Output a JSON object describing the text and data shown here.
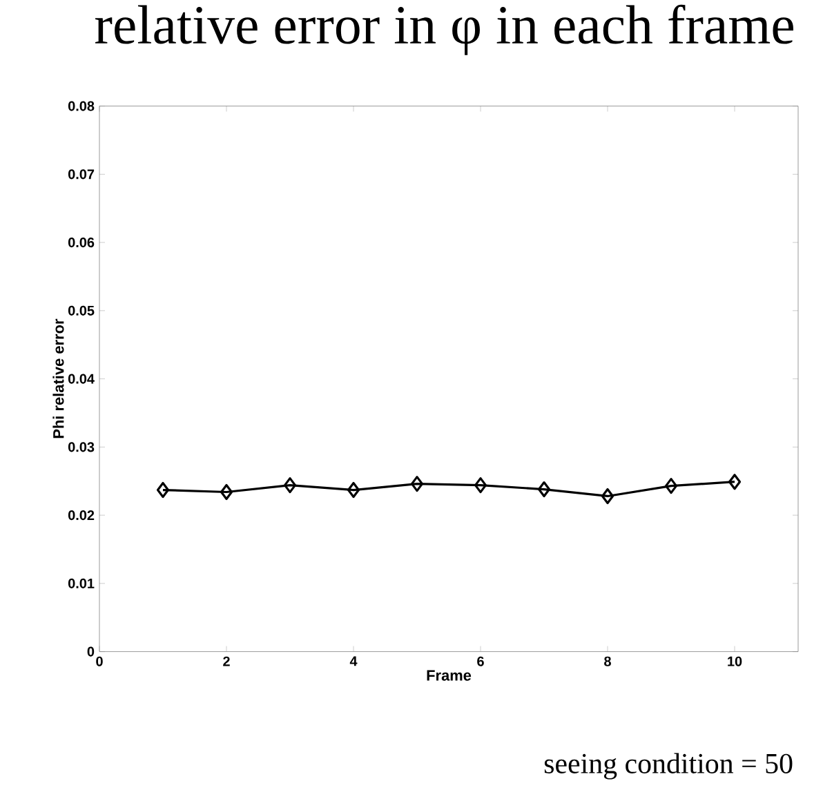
{
  "chart_data": {
    "type": "line",
    "title": "relative error in φ in each frame",
    "xlabel": "Frame",
    "ylabel": "Phi relative error",
    "annotations": [
      "seeing condition = 50"
    ],
    "x": [
      1,
      2,
      3,
      4,
      5,
      6,
      7,
      8,
      9,
      10
    ],
    "series": [
      {
        "color": "#000000",
        "values": [
          0.0237,
          0.0234,
          0.0244,
          0.0237,
          0.0246,
          0.0244,
          0.0238,
          0.0228,
          0.0243,
          0.0249
        ]
      }
    ],
    "xlim": [
      0,
      11
    ],
    "ylim": [
      0,
      0.08
    ],
    "xticks": [
      0,
      2,
      4,
      6,
      8,
      10
    ],
    "yticks": [
      0,
      0.01,
      0.02,
      0.03,
      0.04,
      0.05,
      0.06,
      0.07,
      0.08
    ],
    "grid": false,
    "marker": "diamond",
    "line_style": "solid"
  }
}
